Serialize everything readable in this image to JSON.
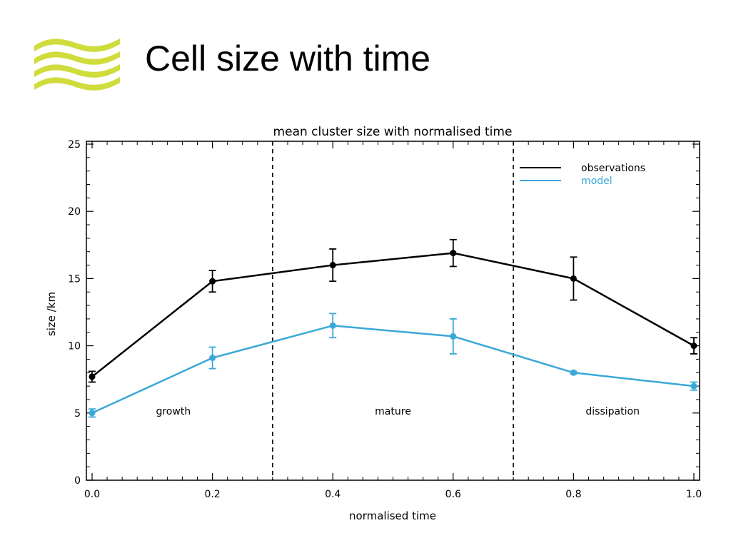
{
  "slide": {
    "title": "Cell size with time",
    "logo_icon": "wave-logo-icon",
    "logo_color": "#cfdc3c"
  },
  "chart_data": {
    "type": "line",
    "title": "mean cluster size with normalised time",
    "xlabel": "normalised time",
    "ylabel": "size /km",
    "xlim": [
      0.0,
      1.0
    ],
    "ylim": [
      0,
      25
    ],
    "xticks": [
      "0.0",
      "0.2",
      "0.4",
      "0.6",
      "0.8",
      "1.0"
    ],
    "yticks": [
      "0",
      "5",
      "10",
      "15",
      "20",
      "25"
    ],
    "grid": false,
    "legend_position": "top-right",
    "x": [
      0.0,
      0.2,
      0.4,
      0.6,
      0.8,
      1.0
    ],
    "series": [
      {
        "name": "observations",
        "color": "#000000",
        "values": [
          7.7,
          14.8,
          16.0,
          16.9,
          15.0,
          10.0
        ],
        "error": [
          0.4,
          0.8,
          1.2,
          1.0,
          1.6,
          0.6
        ]
      },
      {
        "name": "model",
        "color": "#3aa8d8",
        "values": [
          5.0,
          9.1,
          11.5,
          10.7,
          8.0,
          7.0
        ],
        "error": [
          0.3,
          0.8,
          0.9,
          1.3,
          0.1,
          0.3
        ]
      }
    ],
    "dividers": [
      0.3,
      0.7
    ],
    "annotations": [
      {
        "text": "growth",
        "x": 0.135,
        "y": 5
      },
      {
        "text": "mature",
        "x": 0.5,
        "y": 5
      },
      {
        "text": "dissipation",
        "x": 0.865,
        "y": 5
      }
    ]
  }
}
